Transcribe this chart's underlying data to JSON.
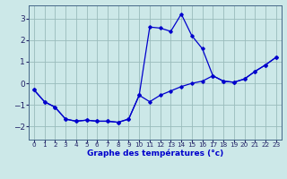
{
  "title": "Graphe des températures (°c)",
  "background_color": "#cce8e8",
  "line_color": "#0000cc",
  "grid_color": "#99bbbb",
  "xlim": [
    -0.5,
    23.5
  ],
  "ylim": [
    -2.6,
    3.6
  ],
  "xticks": [
    0,
    1,
    2,
    3,
    4,
    5,
    6,
    7,
    8,
    9,
    10,
    11,
    12,
    13,
    14,
    15,
    16,
    17,
    18,
    19,
    20,
    21,
    22,
    23
  ],
  "yticks": [
    -2,
    -1,
    0,
    1,
    2,
    3
  ],
  "curve1_x": [
    0,
    1,
    2,
    3,
    4,
    5,
    6,
    7,
    8,
    9,
    10,
    11,
    12,
    13,
    14,
    15,
    16,
    17,
    18,
    19,
    20,
    21,
    22,
    23
  ],
  "curve1_y": [
    -0.3,
    -0.85,
    -1.1,
    -1.65,
    -1.75,
    -1.7,
    -1.75,
    -1.75,
    -1.8,
    -1.65,
    -0.55,
    2.6,
    2.55,
    2.4,
    3.2,
    2.2,
    1.6,
    0.35,
    0.1,
    0.05,
    0.2,
    0.55,
    0.85,
    1.2
  ],
  "curve2_x": [
    0,
    1,
    2,
    3,
    4,
    5,
    6,
    7,
    8,
    9,
    10,
    11,
    12,
    13,
    14,
    15,
    16,
    17,
    18,
    19,
    20,
    21,
    22,
    23
  ],
  "curve2_y": [
    -0.3,
    -0.85,
    -1.1,
    -1.65,
    -1.75,
    -1.7,
    -1.75,
    -1.75,
    -1.8,
    -1.65,
    -0.55,
    -0.85,
    -0.55,
    -0.35,
    -0.15,
    0.0,
    0.1,
    0.35,
    0.1,
    0.05,
    0.2,
    0.55,
    0.85,
    1.2
  ]
}
